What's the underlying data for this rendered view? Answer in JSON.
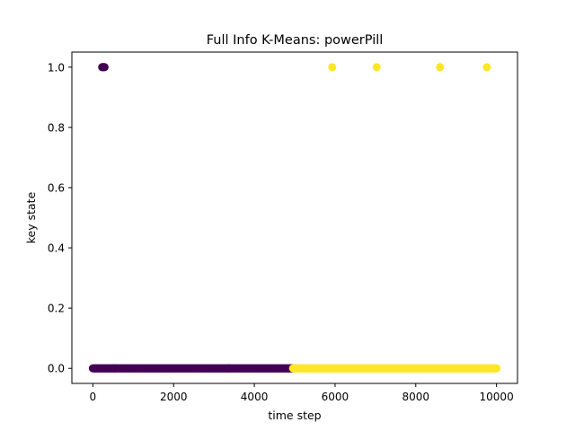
{
  "chart_data": {
    "type": "scatter",
    "title": "Full Info K-Means: powerPill",
    "xlabel": "time step",
    "ylabel": "key state",
    "xlim": [
      -520,
      10520
    ],
    "ylim": [
      -0.05,
      1.05
    ],
    "x_ticks": [
      0,
      2000,
      4000,
      6000,
      8000,
      10000
    ],
    "x_tick_labels": [
      "0",
      "2000",
      "4000",
      "6000",
      "8000",
      "10000"
    ],
    "y_ticks": [
      0.0,
      0.2,
      0.4,
      0.6,
      0.8,
      1.0
    ],
    "y_tick_labels": [
      "0.0",
      "0.2",
      "0.4",
      "0.6",
      "0.8",
      "1.0"
    ],
    "grid": false,
    "legend": "none",
    "series": [
      {
        "color": "#440154",
        "points_at_one": [
          230,
          245,
          260,
          275,
          290
        ],
        "range_at_zero": [
          0,
          4960
        ]
      },
      {
        "color": "#fde725",
        "points_at_one": [
          5930,
          7030,
          8600,
          9760
        ],
        "range_at_zero": [
          4960,
          10000
        ]
      }
    ]
  }
}
